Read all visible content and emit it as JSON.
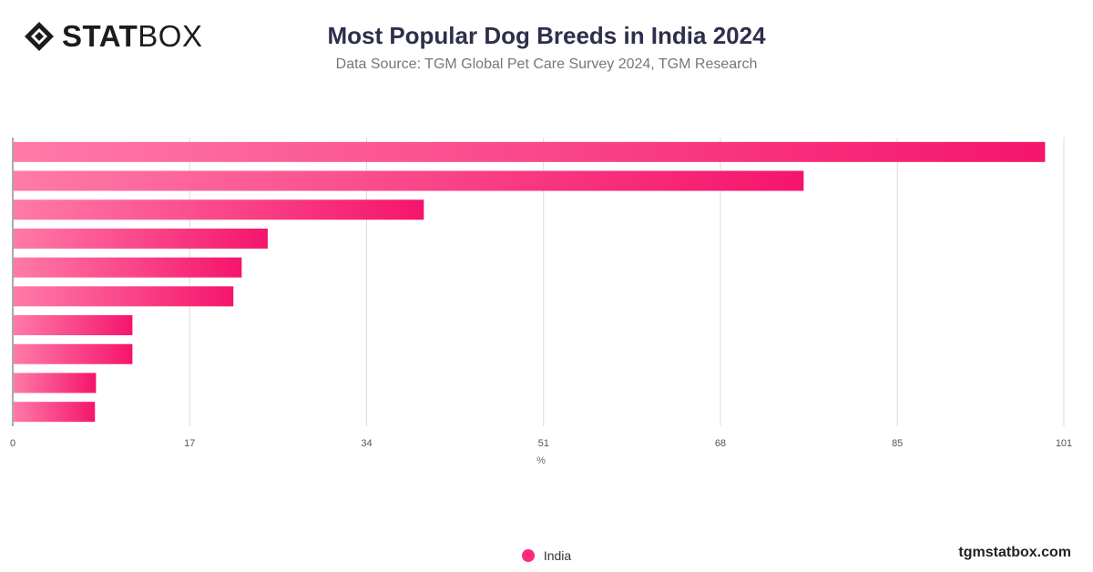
{
  "logo": {
    "bold": "STAT",
    "light": "BOX",
    "icon": "diamond-logo-icon"
  },
  "header": {
    "title": "Most Popular Dog Breeds in India 2024",
    "subtitle": "Data Source: TGM Global Pet Care Survey 2024, TGM Research"
  },
  "chart_data": {
    "type": "bar",
    "orientation": "horizontal",
    "categories": [
      "",
      "",
      "",
      "",
      "",
      "",
      "",
      "",
      "",
      ""
    ],
    "series": [
      {
        "name": "India",
        "values": [
          99.2,
          76.0,
          39.5,
          24.5,
          22.0,
          21.2,
          11.5,
          11.5,
          8.0,
          7.9
        ],
        "color": "#ff2a7c"
      }
    ],
    "xlabel": "%",
    "xlim": [
      0,
      101
    ],
    "xticks": [
      0,
      17,
      34,
      51,
      68,
      85,
      101
    ],
    "grid": true,
    "legend_position": "bottom-center",
    "bar_gradient": [
      "#ff7aa8",
      "#f5156c"
    ]
  },
  "legend": {
    "label": "India"
  },
  "footer": {
    "brand": "tgmstatbox.com"
  }
}
